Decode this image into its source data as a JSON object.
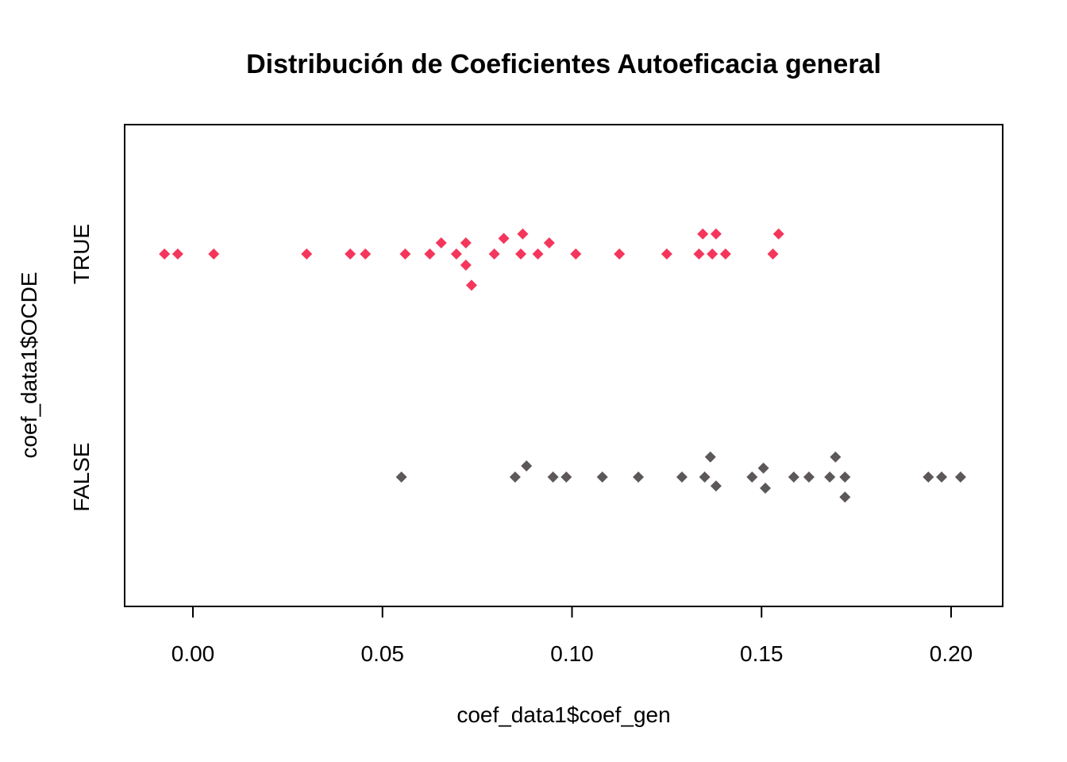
{
  "chart_data": {
    "type": "scatter",
    "title": "Distribución de Coeficientes Autoeficacia general",
    "xlabel": "coef_data1$coef_gen",
    "ylabel": "coef_data1$OCDE",
    "xlim": [
      -0.02,
      0.212
    ],
    "x_ticks": [
      0.0,
      0.05,
      0.1,
      0.15,
      0.2
    ],
    "x_tick_labels": [
      "0.00",
      "0.05",
      "0.10",
      "0.15",
      "0.20"
    ],
    "categories": [
      "FALSE",
      "TRUE"
    ],
    "marker": "diamond",
    "grid": false,
    "legend": "none",
    "series": [
      {
        "category": "TRUE",
        "color": "#F5365C",
        "points": [
          {
            "x": -0.0075,
            "y": 0.0
          },
          {
            "x": -0.004,
            "y": 0.0
          },
          {
            "x": 0.0055,
            "y": 0.0
          },
          {
            "x": 0.03,
            "y": 0.0
          },
          {
            "x": 0.0415,
            "y": 0.0
          },
          {
            "x": 0.0455,
            "y": 0.0
          },
          {
            "x": 0.056,
            "y": 0.0
          },
          {
            "x": 0.0625,
            "y": 0.0
          },
          {
            "x": 0.0655,
            "y": 0.05
          },
          {
            "x": 0.0695,
            "y": 0.0
          },
          {
            "x": 0.072,
            "y": 0.05
          },
          {
            "x": 0.072,
            "y": -0.05
          },
          {
            "x": 0.0735,
            "y": -0.14
          },
          {
            "x": 0.0795,
            "y": 0.0
          },
          {
            "x": 0.082,
            "y": 0.07
          },
          {
            "x": 0.0865,
            "y": 0.0
          },
          {
            "x": 0.087,
            "y": 0.09
          },
          {
            "x": 0.091,
            "y": 0.0
          },
          {
            "x": 0.094,
            "y": 0.05
          },
          {
            "x": 0.101,
            "y": 0.0
          },
          {
            "x": 0.1125,
            "y": 0.0
          },
          {
            "x": 0.125,
            "y": 0.0
          },
          {
            "x": 0.1335,
            "y": 0.0
          },
          {
            "x": 0.1345,
            "y": 0.09
          },
          {
            "x": 0.137,
            "y": 0.0
          },
          {
            "x": 0.138,
            "y": 0.09
          },
          {
            "x": 0.1405,
            "y": 0.0
          },
          {
            "x": 0.153,
            "y": 0.0
          },
          {
            "x": 0.1545,
            "y": 0.09
          }
        ]
      },
      {
        "category": "FALSE",
        "color": "#5C5759",
        "points": [
          {
            "x": 0.055,
            "y": 0.0
          },
          {
            "x": 0.085,
            "y": 0.0
          },
          {
            "x": 0.088,
            "y": 0.05
          },
          {
            "x": 0.095,
            "y": 0.0
          },
          {
            "x": 0.0985,
            "y": 0.0
          },
          {
            "x": 0.108,
            "y": 0.0
          },
          {
            "x": 0.1175,
            "y": 0.0
          },
          {
            "x": 0.129,
            "y": 0.0
          },
          {
            "x": 0.135,
            "y": 0.0
          },
          {
            "x": 0.1365,
            "y": 0.09
          },
          {
            "x": 0.138,
            "y": -0.04
          },
          {
            "x": 0.1475,
            "y": 0.0
          },
          {
            "x": 0.1505,
            "y": 0.04
          },
          {
            "x": 0.151,
            "y": -0.05
          },
          {
            "x": 0.1585,
            "y": 0.0
          },
          {
            "x": 0.1625,
            "y": 0.0
          },
          {
            "x": 0.168,
            "y": 0.0
          },
          {
            "x": 0.1695,
            "y": 0.09
          },
          {
            "x": 0.172,
            "y": 0.0
          },
          {
            "x": 0.172,
            "y": -0.09
          },
          {
            "x": 0.194,
            "y": 0.0
          },
          {
            "x": 0.1975,
            "y": 0.0
          },
          {
            "x": 0.2025,
            "y": 0.0
          }
        ]
      }
    ]
  }
}
